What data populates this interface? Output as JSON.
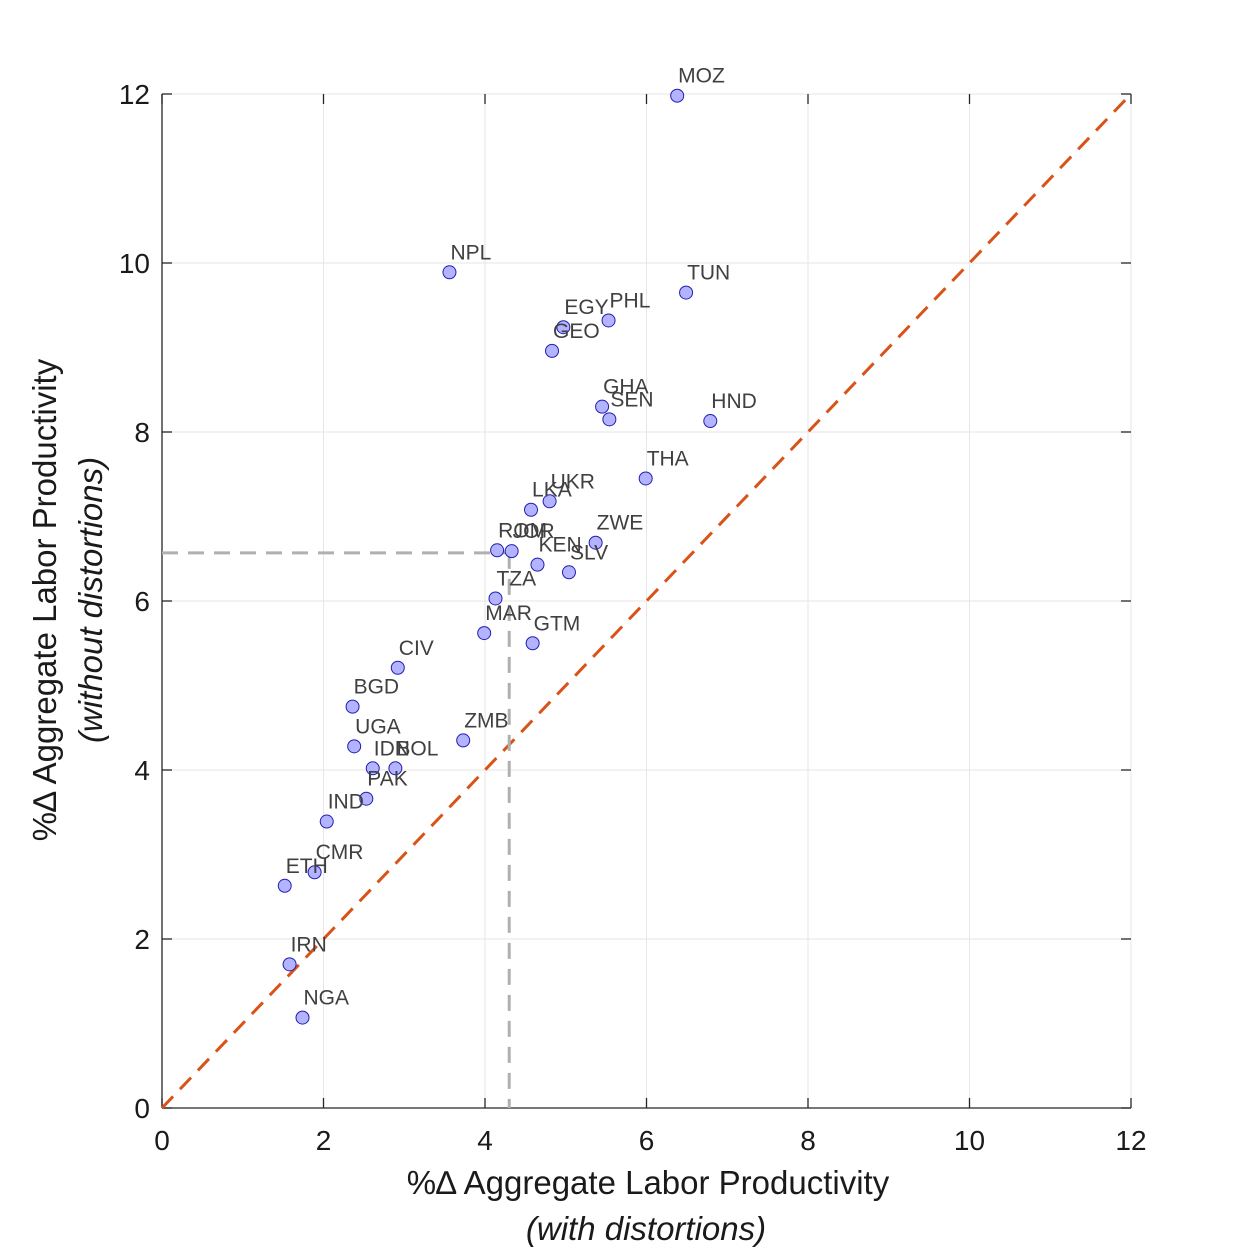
{
  "chart_data": {
    "type": "scatter",
    "xlabel": "%∆ Aggregate Labor Productivity",
    "xlabel_sub": "(with distortions)",
    "ylabel": "%∆ Aggregate Labor Productivity",
    "ylabel_sub": "(without distortions)",
    "xlim": [
      0,
      12
    ],
    "ylim": [
      0,
      12
    ],
    "xticks": [
      0,
      2,
      4,
      6,
      8,
      10,
      12
    ],
    "yticks": [
      0,
      2,
      4,
      6,
      8,
      10,
      12
    ],
    "grid": true,
    "reference_line": {
      "from": [
        0,
        0
      ],
      "to": [
        12,
        12
      ],
      "style": "dashed",
      "color": "#D95319"
    },
    "median_marker": {
      "x": 4.3,
      "y": 6.57,
      "style": "dashed",
      "color": "#B0B0B0"
    },
    "marker_color": "#B3B3FF",
    "marker_edge_color": "#1F1FB0",
    "points": [
      {
        "label": "MOZ",
        "x": 6.38,
        "y": 11.98
      },
      {
        "label": "NPL",
        "x": 3.56,
        "y": 9.89
      },
      {
        "label": "TUN",
        "x": 6.49,
        "y": 9.65
      },
      {
        "label": "EGY",
        "x": 4.97,
        "y": 9.24
      },
      {
        "label": "PHL",
        "x": 5.53,
        "y": 9.32
      },
      {
        "label": "GEO",
        "x": 4.83,
        "y": 8.96
      },
      {
        "label": "GHA",
        "x": 5.45,
        "y": 8.3
      },
      {
        "label": "SEN",
        "x": 5.54,
        "y": 8.15
      },
      {
        "label": "HND",
        "x": 6.79,
        "y": 8.13
      },
      {
        "label": "THA",
        "x": 5.99,
        "y": 7.45
      },
      {
        "label": "UKR",
        "x": 4.8,
        "y": 7.18
      },
      {
        "label": "LKA",
        "x": 4.57,
        "y": 7.08
      },
      {
        "label": "ROM",
        "x": 4.15,
        "y": 6.6
      },
      {
        "label": "JOR",
        "x": 4.33,
        "y": 6.59
      },
      {
        "label": "ZWE",
        "x": 5.37,
        "y": 6.69
      },
      {
        "label": "KEN",
        "x": 4.65,
        "y": 6.43
      },
      {
        "label": "SLV",
        "x": 5.04,
        "y": 6.34
      },
      {
        "label": "TZA",
        "x": 4.13,
        "y": 6.03
      },
      {
        "label": "MAR",
        "x": 3.99,
        "y": 5.62
      },
      {
        "label": "GTM",
        "x": 4.59,
        "y": 5.5
      },
      {
        "label": "CIV",
        "x": 2.92,
        "y": 5.21
      },
      {
        "label": "BGD",
        "x": 2.36,
        "y": 4.75
      },
      {
        "label": "ZMB",
        "x": 3.73,
        "y": 4.35
      },
      {
        "label": "UGA",
        "x": 2.38,
        "y": 4.28
      },
      {
        "label": "IDN",
        "x": 2.61,
        "y": 4.02
      },
      {
        "label": "BOL",
        "x": 2.89,
        "y": 4.02
      },
      {
        "label": "PAK",
        "x": 2.53,
        "y": 3.66
      },
      {
        "label": "IND",
        "x": 2.04,
        "y": 3.39
      },
      {
        "label": "ETH",
        "x": 1.52,
        "y": 2.63
      },
      {
        "label": "CMR",
        "x": 1.89,
        "y": 2.79
      },
      {
        "label": "IRN",
        "x": 1.58,
        "y": 1.7
      },
      {
        "label": "NGA",
        "x": 1.74,
        "y": 1.07
      }
    ]
  }
}
